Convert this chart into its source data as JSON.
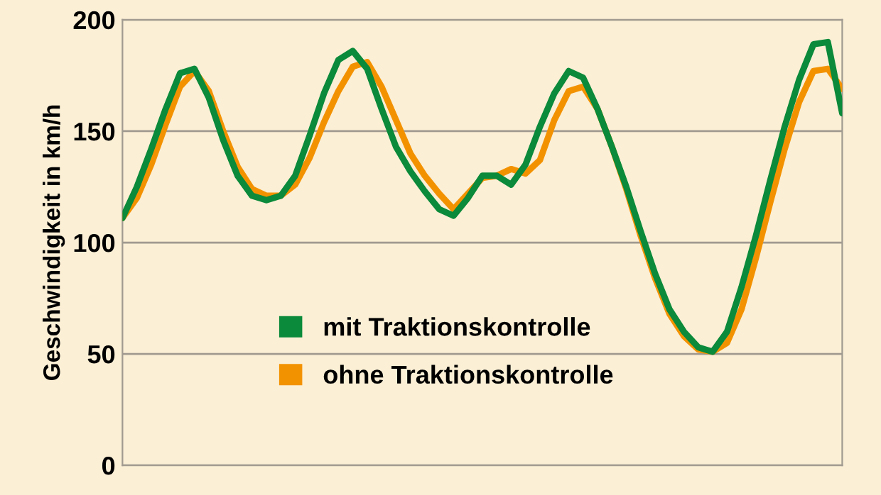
{
  "chart_data": {
    "type": "line",
    "ylabel": "Geschwindigkeit in km/h",
    "categories": [
      null,
      null,
      null,
      null,
      null,
      null,
      null,
      null,
      null,
      null,
      null,
      null,
      null,
      null,
      null,
      null,
      null,
      null,
      null,
      null,
      null,
      null,
      null,
      null,
      null,
      null,
      null,
      null,
      null,
      null,
      null,
      null,
      null,
      null,
      null,
      null,
      null,
      null,
      null,
      null,
      null,
      null,
      null,
      null,
      null,
      null,
      null,
      null,
      null,
      null,
      null
    ],
    "series": [
      {
        "name": "mit Traktionskontrolle",
        "color": "#0a8a3a",
        "values": [
          111,
          125,
          142,
          160,
          176,
          178,
          165,
          146,
          130,
          121,
          119,
          121,
          130,
          148,
          167,
          182,
          186,
          178,
          160,
          143,
          132,
          123,
          115,
          112,
          120,
          130,
          130,
          126,
          135,
          152,
          167,
          177,
          174,
          160,
          143,
          125,
          105,
          86,
          70,
          60,
          53,
          51,
          60,
          80,
          103,
          128,
          152,
          173,
          189,
          190,
          158
        ]
      },
      {
        "name": "ohne Traktionskontrolle",
        "color": "#f39200",
        "values": [
          111,
          120,
          135,
          153,
          170,
          177,
          168,
          150,
          134,
          124,
          121,
          121,
          126,
          138,
          154,
          168,
          179,
          181,
          170,
          155,
          140,
          130,
          122,
          115,
          122,
          129,
          130,
          133,
          131,
          137,
          155,
          168,
          170,
          160,
          143,
          124,
          103,
          84,
          68,
          58,
          52,
          51,
          55,
          70,
          93,
          118,
          142,
          163,
          177,
          178,
          169
        ]
      }
    ],
    "ylim": [
      0,
      200
    ],
    "yticks": [
      0,
      50,
      100,
      150,
      200
    ],
    "grid": "y",
    "legend": "bottom",
    "marker": "none",
    "line_style": "solid"
  }
}
